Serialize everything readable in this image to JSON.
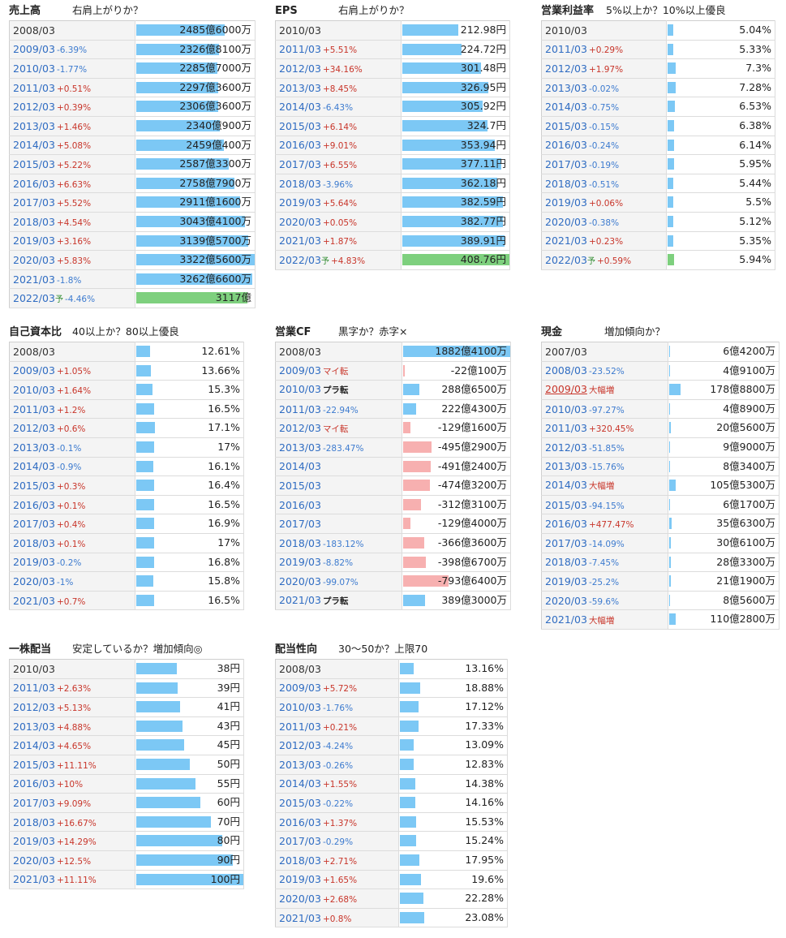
{
  "panels": [
    {
      "key": "sales",
      "title": "売上高",
      "subtitle": "右肩上がりか？",
      "bar_max": 3322.56,
      "bar_mode": "abs",
      "rows": [
        {
          "period": "2008/03",
          "change": "",
          "value": 2485.6,
          "label": "2485億6000万"
        },
        {
          "period": "2009/03",
          "change": "-6.39%",
          "value": 2326.81,
          "label": "2326億8100万"
        },
        {
          "period": "2010/03",
          "change": "-1.77%",
          "value": 2285.7,
          "label": "2285億7000万"
        },
        {
          "period": "2011/03",
          "change": "+0.51%",
          "value": 2297.36,
          "label": "2297億3600万"
        },
        {
          "period": "2012/03",
          "change": "+0.39%",
          "value": 2306.36,
          "label": "2306億3600万"
        },
        {
          "period": "2013/03",
          "change": "+1.46%",
          "value": 2340.09,
          "label": "2340億900万"
        },
        {
          "period": "2014/03",
          "change": "+5.08%",
          "value": 2459.04,
          "label": "2459億400万"
        },
        {
          "period": "2015/03",
          "change": "+5.22%",
          "value": 2587.33,
          "label": "2587億3300万"
        },
        {
          "period": "2016/03",
          "change": "+6.63%",
          "value": 2758.79,
          "label": "2758億7900万"
        },
        {
          "period": "2017/03",
          "change": "+5.52%",
          "value": 2911.16,
          "label": "2911億1600万"
        },
        {
          "period": "2018/03",
          "change": "+4.54%",
          "value": 3043.41,
          "label": "3043億4100万"
        },
        {
          "period": "2019/03",
          "change": "+3.16%",
          "value": 3139.57,
          "label": "3139億5700万"
        },
        {
          "period": "2020/03",
          "change": "+5.83%",
          "value": 3322.56,
          "label": "3322億5600万"
        },
        {
          "period": "2021/03",
          "change": "-1.8%",
          "value": 3262.66,
          "label": "3262億6600万"
        },
        {
          "period": "2022/03",
          "forecast": "予",
          "change": "-4.46%",
          "value": 3117,
          "label": "3117億"
        }
      ]
    },
    {
      "key": "eps",
      "title": "EPS",
      "subtitle": "右肩上がりか？",
      "bar_max": 408.76,
      "bar_mode": "abs",
      "rows": [
        {
          "period": "2010/03",
          "change": "",
          "value": 212.98,
          "label": "212.98円"
        },
        {
          "period": "2011/03",
          "change": "+5.51%",
          "value": 224.72,
          "label": "224.72円"
        },
        {
          "period": "2012/03",
          "change": "+34.16%",
          "value": 301.48,
          "label": "301.48円"
        },
        {
          "period": "2013/03",
          "change": "+8.45%",
          "value": 326.95,
          "label": "326.95円"
        },
        {
          "period": "2014/03",
          "change": "-6.43%",
          "value": 305.92,
          "label": "305.92円"
        },
        {
          "period": "2015/03",
          "change": "+6.14%",
          "value": 324.7,
          "label": "324.7円"
        },
        {
          "period": "2016/03",
          "change": "+9.01%",
          "value": 353.94,
          "label": "353.94円"
        },
        {
          "period": "2017/03",
          "change": "+6.55%",
          "value": 377.11,
          "label": "377.11円"
        },
        {
          "period": "2018/03",
          "change": "-3.96%",
          "value": 362.18,
          "label": "362.18円"
        },
        {
          "period": "2019/03",
          "change": "+5.64%",
          "value": 382.59,
          "label": "382.59円"
        },
        {
          "period": "2020/03",
          "change": "+0.05%",
          "value": 382.77,
          "label": "382.77円"
        },
        {
          "period": "2021/03",
          "change": "+1.87%",
          "value": 389.91,
          "label": "389.91円"
        },
        {
          "period": "2022/03",
          "forecast": "予",
          "change": "+4.83%",
          "value": 408.76,
          "label": "408.76円"
        }
      ]
    },
    {
      "key": "opmargin",
      "title": "営業利益率",
      "subtitle": "5%以上か？10%以上優良",
      "bar_max": 100,
      "bar_mode": "abs",
      "rows": [
        {
          "period": "2010/03",
          "change": "",
          "value": 5.04,
          "label": "5.04%"
        },
        {
          "period": "2011/03",
          "change": "+0.29%",
          "value": 5.33,
          "label": "5.33%"
        },
        {
          "period": "2012/03",
          "change": "+1.97%",
          "value": 7.3,
          "label": "7.3%"
        },
        {
          "period": "2013/03",
          "change": "-0.02%",
          "value": 7.28,
          "label": "7.28%"
        },
        {
          "period": "2014/03",
          "change": "-0.75%",
          "value": 6.53,
          "label": "6.53%"
        },
        {
          "period": "2015/03",
          "change": "-0.15%",
          "value": 6.38,
          "label": "6.38%"
        },
        {
          "period": "2016/03",
          "change": "-0.24%",
          "value": 6.14,
          "label": "6.14%"
        },
        {
          "period": "2017/03",
          "change": "-0.19%",
          "value": 5.95,
          "label": "5.95%"
        },
        {
          "period": "2018/03",
          "change": "-0.51%",
          "value": 5.44,
          "label": "5.44%"
        },
        {
          "period": "2019/03",
          "change": "+0.06%",
          "value": 5.5,
          "label": "5.5%"
        },
        {
          "period": "2020/03",
          "change": "-0.38%",
          "value": 5.12,
          "label": "5.12%"
        },
        {
          "period": "2021/03",
          "change": "+0.23%",
          "value": 5.35,
          "label": "5.35%"
        },
        {
          "period": "2022/03",
          "forecast": "予",
          "change": "+0.59%",
          "value": 5.94,
          "label": "5.94%"
        }
      ]
    },
    {
      "key": "equity",
      "title": "自己資本比",
      "subtitle": "40以上か？80以上優良",
      "bar_max": 100,
      "bar_mode": "abs",
      "rows": [
        {
          "period": "2008/03",
          "change": "",
          "value": 12.61,
          "label": "12.61%"
        },
        {
          "period": "2009/03",
          "change": "+1.05%",
          "value": 13.66,
          "label": "13.66%"
        },
        {
          "period": "2010/03",
          "change": "+1.64%",
          "value": 15.3,
          "label": "15.3%"
        },
        {
          "period": "2011/03",
          "change": "+1.2%",
          "value": 16.5,
          "label": "16.5%"
        },
        {
          "period": "2012/03",
          "change": "+0.6%",
          "value": 17.1,
          "label": "17.1%"
        },
        {
          "period": "2013/03",
          "change": "-0.1%",
          "value": 17,
          "label": "17%"
        },
        {
          "period": "2014/03",
          "change": "-0.9%",
          "value": 16.1,
          "label": "16.1%"
        },
        {
          "period": "2015/03",
          "change": "+0.3%",
          "value": 16.4,
          "label": "16.4%"
        },
        {
          "period": "2016/03",
          "change": "+0.1%",
          "value": 16.5,
          "label": "16.5%"
        },
        {
          "period": "2017/03",
          "change": "+0.4%",
          "value": 16.9,
          "label": "16.9%"
        },
        {
          "period": "2018/03",
          "change": "+0.1%",
          "value": 17,
          "label": "17%"
        },
        {
          "period": "2019/03",
          "change": "-0.2%",
          "value": 16.8,
          "label": "16.8%"
        },
        {
          "period": "2020/03",
          "change": "-1%",
          "value": 15.8,
          "label": "15.8%"
        },
        {
          "period": "2021/03",
          "change": "+0.7%",
          "value": 16.5,
          "label": "16.5%"
        }
      ]
    },
    {
      "key": "opcf",
      "title": "営業CF",
      "subtitle": "黒字か？赤字×",
      "bar_max": 1882.41,
      "bar_mode": "signed",
      "rows": [
        {
          "period": "2008/03",
          "change": "",
          "value": 1882.41,
          "label": "1882億4100万"
        },
        {
          "period": "2009/03",
          "mark": "マイ転",
          "value": -22.01,
          "label": "-22億100万"
        },
        {
          "period": "2010/03",
          "mark": "プラ転",
          "value": 288.65,
          "label": "288億6500万"
        },
        {
          "period": "2011/03",
          "change": "-22.94%",
          "value": 222.43,
          "label": "222億4300万"
        },
        {
          "period": "2012/03",
          "mark": "マイ転",
          "value": -129.16,
          "label": "-129億1600万"
        },
        {
          "period": "2013/03",
          "change": "-283.47%",
          "value": -495.29,
          "label": "-495億2900万"
        },
        {
          "period": "2014/03",
          "change": "",
          "value": -491.24,
          "label": "-491億2400万"
        },
        {
          "period": "2015/03",
          "change": "",
          "value": -474.32,
          "label": "-474億3200万"
        },
        {
          "period": "2016/03",
          "change": "",
          "value": -312.31,
          "label": "-312億3100万"
        },
        {
          "period": "2017/03",
          "change": "",
          "value": -129.4,
          "label": "-129億4000万"
        },
        {
          "period": "2018/03",
          "change": "-183.12%",
          "value": -366.36,
          "label": "-366億3600万"
        },
        {
          "period": "2019/03",
          "change": "-8.82%",
          "value": -398.67,
          "label": "-398億6700万"
        },
        {
          "period": "2020/03",
          "change": "-99.07%",
          "value": -793.64,
          "label": "-793億6400万"
        },
        {
          "period": "2021/03",
          "mark": "プラ転",
          "value": 389.3,
          "label": "389億3000万"
        }
      ]
    },
    {
      "key": "cash",
      "title": "現金",
      "subtitle": "増加傾向か？",
      "bar_max": 1788.8,
      "bar_mode": "abs",
      "rows": [
        {
          "period": "2007/03",
          "change": "",
          "value": 6.42,
          "label": "6億4200万"
        },
        {
          "period": "2008/03",
          "change": "-23.52%",
          "value": 4.91,
          "label": "4億9100万"
        },
        {
          "period": "2009/03",
          "mark": "大幅増",
          "value": 178.88,
          "label": "178億8800万",
          "highlight": "red"
        },
        {
          "period": "2010/03",
          "change": "-97.27%",
          "value": 4.89,
          "label": "4億8900万"
        },
        {
          "period": "2011/03",
          "change": "+320.45%",
          "value": 20.56,
          "label": "20億5600万"
        },
        {
          "period": "2012/03",
          "change": "-51.85%",
          "value": 9.9,
          "label": "9億9000万"
        },
        {
          "period": "2013/03",
          "change": "-15.76%",
          "value": 8.34,
          "label": "8億3400万"
        },
        {
          "period": "2014/03",
          "mark": "大幅増",
          "value": 105.53,
          "label": "105億5300万"
        },
        {
          "period": "2015/03",
          "change": "-94.15%",
          "value": 6.17,
          "label": "6億1700万"
        },
        {
          "period": "2016/03",
          "change": "+477.47%",
          "value": 35.63,
          "label": "35億6300万"
        },
        {
          "period": "2017/03",
          "change": "-14.09%",
          "value": 30.61,
          "label": "30億6100万"
        },
        {
          "period": "2018/03",
          "change": "-7.45%",
          "value": 28.33,
          "label": "28億3300万"
        },
        {
          "period": "2019/03",
          "change": "-25.2%",
          "value": 21.19,
          "label": "21億1900万"
        },
        {
          "period": "2020/03",
          "change": "-59.6%",
          "value": 8.56,
          "label": "8億5600万"
        },
        {
          "period": "2021/03",
          "mark": "大幅増",
          "value": 110.28,
          "label": "110億2800万"
        }
      ]
    },
    {
      "key": "dividend",
      "title": "一株配当",
      "subtitle": "安定しているか？増加傾向◎",
      "bar_max": 100,
      "bar_mode": "abs",
      "rows": [
        {
          "period": "2010/03",
          "change": "",
          "value": 38,
          "label": "38円"
        },
        {
          "period": "2011/03",
          "change": "+2.63%",
          "value": 39,
          "label": "39円"
        },
        {
          "period": "2012/03",
          "change": "+5.13%",
          "value": 41,
          "label": "41円"
        },
        {
          "period": "2013/03",
          "change": "+4.88%",
          "value": 43,
          "label": "43円"
        },
        {
          "period": "2014/03",
          "change": "+4.65%",
          "value": 45,
          "label": "45円"
        },
        {
          "period": "2015/03",
          "change": "+11.11%",
          "value": 50,
          "label": "50円"
        },
        {
          "period": "2016/03",
          "change": "+10%",
          "value": 55,
          "label": "55円"
        },
        {
          "period": "2017/03",
          "change": "+9.09%",
          "value": 60,
          "label": "60円"
        },
        {
          "period": "2018/03",
          "change": "+16.67%",
          "value": 70,
          "label": "70円"
        },
        {
          "period": "2019/03",
          "change": "+14.29%",
          "value": 80,
          "label": "80円"
        },
        {
          "period": "2020/03",
          "change": "+12.5%",
          "value": 90,
          "label": "90円"
        },
        {
          "period": "2021/03",
          "change": "+11.11%",
          "value": 100,
          "label": "100円"
        }
      ]
    },
    {
      "key": "payout",
      "title": "配当性向",
      "subtitle": "30〜50か？上限70",
      "bar_max": 100,
      "bar_mode": "abs",
      "rows": [
        {
          "period": "2008/03",
          "change": "",
          "value": 13.16,
          "label": "13.16%"
        },
        {
          "period": "2009/03",
          "change": "+5.72%",
          "value": 18.88,
          "label": "18.88%"
        },
        {
          "period": "2010/03",
          "change": "-1.76%",
          "value": 17.12,
          "label": "17.12%"
        },
        {
          "period": "2011/03",
          "change": "+0.21%",
          "value": 17.33,
          "label": "17.33%"
        },
        {
          "period": "2012/03",
          "change": "-4.24%",
          "value": 13.09,
          "label": "13.09%"
        },
        {
          "period": "2013/03",
          "change": "-0.26%",
          "value": 12.83,
          "label": "12.83%"
        },
        {
          "period": "2014/03",
          "change": "+1.55%",
          "value": 14.38,
          "label": "14.38%"
        },
        {
          "period": "2015/03",
          "change": "-0.22%",
          "value": 14.16,
          "label": "14.16%"
        },
        {
          "period": "2016/03",
          "change": "+1.37%",
          "value": 15.53,
          "label": "15.53%"
        },
        {
          "period": "2017/03",
          "change": "-0.29%",
          "value": 15.24,
          "label": "15.24%"
        },
        {
          "period": "2018/03",
          "change": "+2.71%",
          "value": 17.95,
          "label": "17.95%"
        },
        {
          "period": "2019/03",
          "change": "+1.65%",
          "value": 19.6,
          "label": "19.6%"
        },
        {
          "period": "2020/03",
          "change": "+2.68%",
          "value": 22.28,
          "label": "22.28%"
        },
        {
          "period": "2021/03",
          "change": "+0.8%",
          "value": 23.08,
          "label": "23.08%"
        }
      ]
    }
  ],
  "colors": {
    "bar": "#7cc8f5",
    "bar_negative": "#f7b0b0",
    "bar_forecast": "#7ed07e",
    "change_positive": "#c8352a",
    "change_negative": "#3d7bcf",
    "period": "#2f6cc2"
  }
}
